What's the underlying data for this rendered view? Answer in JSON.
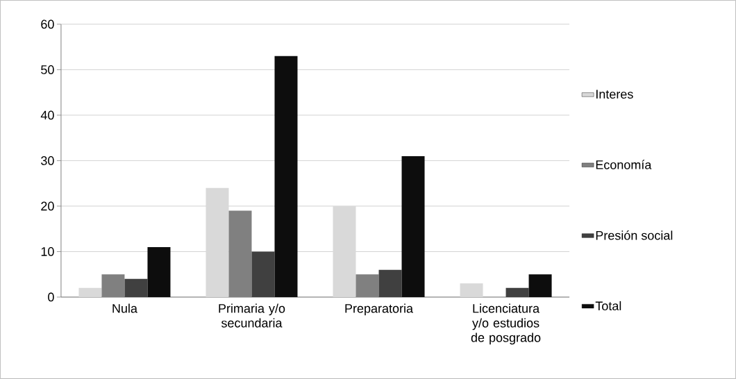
{
  "chart_data": {
    "type": "bar",
    "categories": [
      "Nula",
      "Primaria y/o secundaria",
      "Preparatoria",
      "Licenciatura y/o estudios de posgrado"
    ],
    "series": [
      {
        "name": "Interes",
        "color": "#d9d9d9",
        "values": [
          2,
          24,
          20,
          3
        ]
      },
      {
        "name": "Economía",
        "color": "#808080",
        "values": [
          5,
          19,
          5,
          0
        ]
      },
      {
        "name": "Presión social",
        "color": "#404040",
        "values": [
          4,
          10,
          6,
          2
        ]
      },
      {
        "name": "Total",
        "color": "#0d0d0d",
        "values": [
          11,
          53,
          31,
          5
        ]
      }
    ],
    "ylim": [
      0,
      60
    ],
    "yticks": [
      0,
      10,
      20,
      30,
      40,
      50,
      60
    ],
    "grid": "y",
    "legend": "right"
  }
}
